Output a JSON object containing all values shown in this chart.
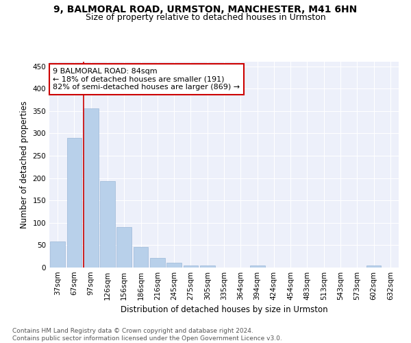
{
  "title1": "9, BALMORAL ROAD, URMSTON, MANCHESTER, M41 6HN",
  "title2": "Size of property relative to detached houses in Urmston",
  "xlabel": "Distribution of detached houses by size in Urmston",
  "ylabel": "Number of detached properties",
  "categories": [
    "37sqm",
    "67sqm",
    "97sqm",
    "126sqm",
    "156sqm",
    "186sqm",
    "216sqm",
    "245sqm",
    "275sqm",
    "305sqm",
    "335sqm",
    "364sqm",
    "394sqm",
    "424sqm",
    "454sqm",
    "483sqm",
    "513sqm",
    "543sqm",
    "573sqm",
    "602sqm",
    "632sqm"
  ],
  "values": [
    58,
    290,
    355,
    193,
    91,
    46,
    21,
    10,
    5,
    4,
    0,
    0,
    5,
    0,
    0,
    0,
    0,
    0,
    0,
    4,
    0
  ],
  "bar_color": "#b8d0ea",
  "bar_edge_color": "#9ab8d8",
  "vline_color": "#cc0000",
  "annotation_text": "9 BALMORAL ROAD: 84sqm\n← 18% of detached houses are smaller (191)\n82% of semi-detached houses are larger (869) →",
  "annotation_box_color": "#ffffff",
  "annotation_box_edge": "#cc0000",
  "ylim": [
    0,
    460
  ],
  "yticks": [
    0,
    50,
    100,
    150,
    200,
    250,
    300,
    350,
    400,
    450
  ],
  "bg_color": "#edf0fa",
  "footnote": "Contains HM Land Registry data © Crown copyright and database right 2024.\nContains public sector information licensed under the Open Government Licence v3.0.",
  "title1_fontsize": 10,
  "title2_fontsize": 9,
  "xlabel_fontsize": 8.5,
  "ylabel_fontsize": 8.5,
  "tick_fontsize": 7.5,
  "annotation_fontsize": 8,
  "footnote_fontsize": 6.5
}
